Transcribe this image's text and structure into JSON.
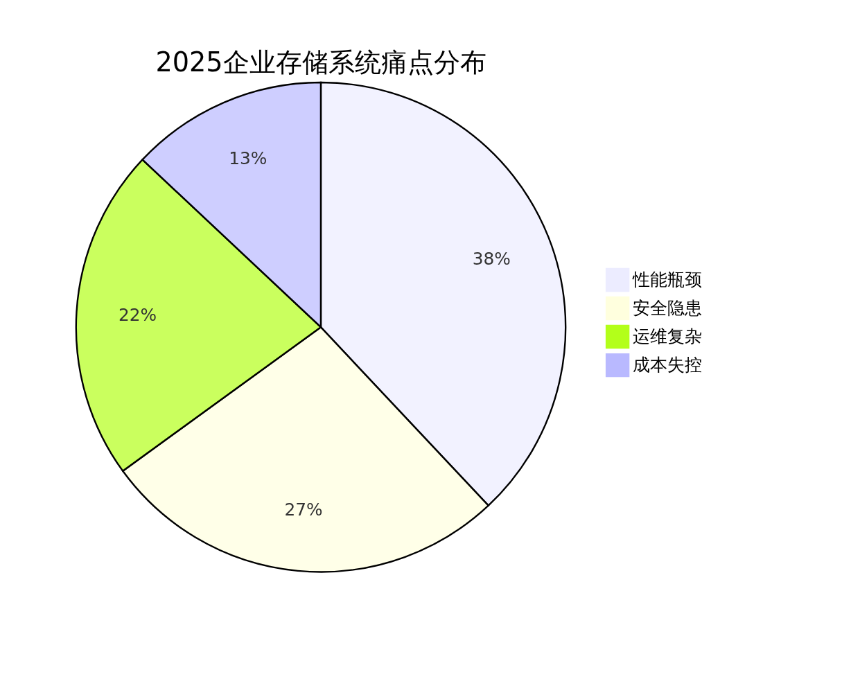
{
  "chart_data": {
    "type": "pie",
    "title": "2025企业存储系统痛点分布",
    "categories": [
      "性能瓶颈",
      "安全隐患",
      "运维复杂",
      "成本失控"
    ],
    "values": [
      38,
      27,
      22,
      13
    ],
    "value_labels": [
      "38%",
      "27%",
      "22%",
      "13%"
    ],
    "colors": [
      "#ececff",
      "#ffffde",
      "#b3ff1a",
      "#b9b9ff"
    ],
    "legend": "right"
  }
}
